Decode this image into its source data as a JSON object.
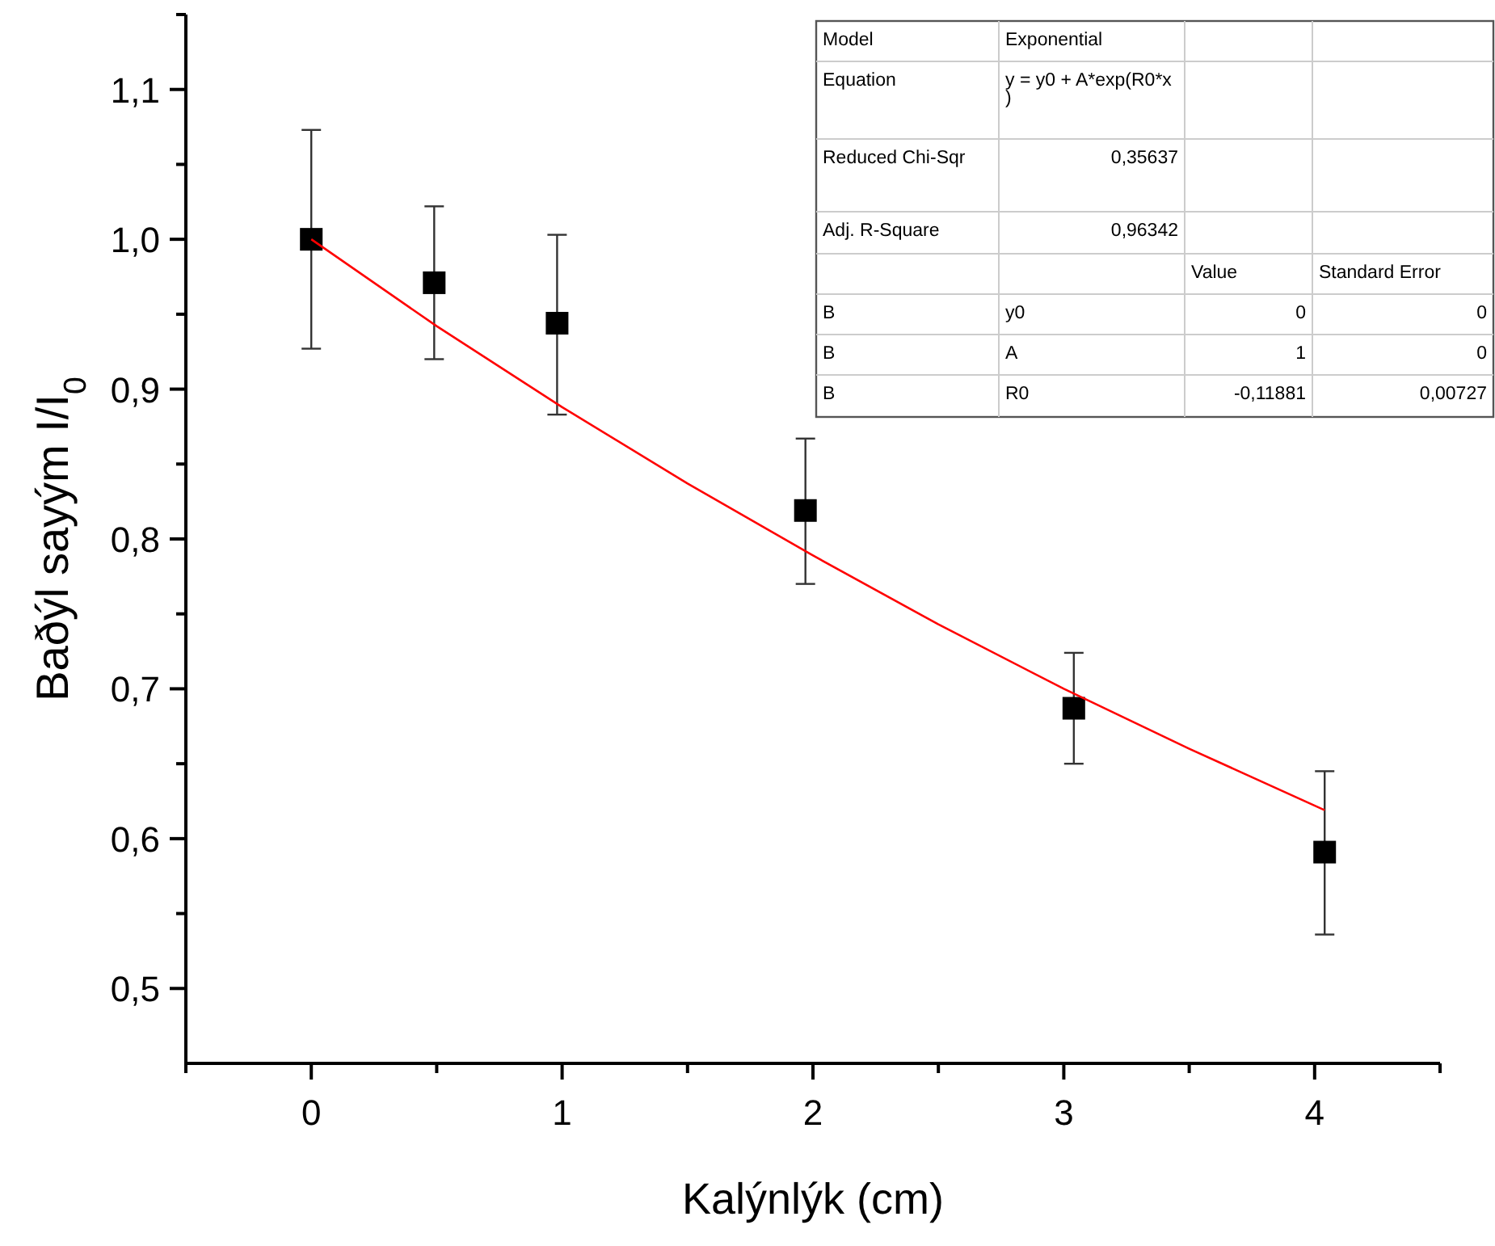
{
  "chart_data": {
    "type": "scatter",
    "xlabel": "Kalýnlýk (cm)",
    "ylabel": "Baðýl sayým I/I$_{0}$",
    "xlim": [
      -0.5,
      4.5
    ],
    "xticks": [
      {
        "value": -0.5,
        "label": null
      },
      0,
      {
        "value": 0.5,
        "label": null
      },
      1,
      {
        "value": 1.5,
        "label": null
      },
      2,
      {
        "value": 2.5,
        "label": null
      },
      3,
      {
        "value": 3.5,
        "label": null
      },
      4,
      {
        "value": 4.5,
        "label": null
      }
    ],
    "ylim": [
      0.45,
      1.15
    ],
    "yticks": [
      {
        "value": 0.5,
        "label": "0,5"
      },
      {
        "value": 0.55,
        "label": null
      },
      {
        "value": 0.6,
        "label": "0,6"
      },
      {
        "value": 0.65,
        "label": null
      },
      {
        "value": 0.7,
        "label": "0,7"
      },
      {
        "value": 0.75,
        "label": null
      },
      {
        "value": 0.8,
        "label": "0,8"
      },
      {
        "value": 0.85,
        "label": null
      },
      {
        "value": 0.9,
        "label": "0,9"
      },
      {
        "value": 0.95,
        "label": null
      },
      {
        "value": 1.0,
        "label": "1,0"
      },
      {
        "value": 1.05,
        "label": null
      },
      {
        "value": 1.1,
        "label": "1,1"
      },
      {
        "value": 1.15,
        "label": null
      }
    ],
    "grid": false,
    "series": [
      {
        "color": "#000000",
        "marker": "square",
        "x": [
          0,
          0.49,
          0.98,
          1.97,
          3.04,
          4.04
        ],
        "values": [
          1.0,
          0.971,
          0.944,
          0.819,
          0.687,
          0.591
        ],
        "errors": [
          [
            0.927,
            1.073
          ],
          [
            0.92,
            1.022
          ],
          [
            0.883,
            1.003
          ],
          [
            0.77,
            0.867
          ],
          [
            0.65,
            0.724
          ],
          [
            0.536,
            0.645
          ]
        ]
      },
      {
        "type": "line",
        "color": "#ff0000",
        "line_style": "solid",
        "x": [
          0,
          0.5,
          1,
          1.5,
          2,
          2.5,
          3,
          3.5,
          4.04
        ],
        "values": [
          1.0,
          0.942,
          0.888,
          0.837,
          0.789,
          0.743,
          0.7,
          0.66,
          0.619
        ]
      }
    ],
    "annotations": [
      "Model",
      "Exponential",
      "Equation",
      "y = y0 + A*exp(R0*x)",
      "Reduced Chi-Sqr",
      "0,35637",
      "Adj. R-Square",
      "0,96342",
      "Value",
      "Standard Error",
      "B",
      "y0",
      "0",
      "0",
      "B",
      "A",
      "1",
      "0",
      "B",
      "R0",
      "-0,11881",
      "0,00727"
    ]
  }
}
